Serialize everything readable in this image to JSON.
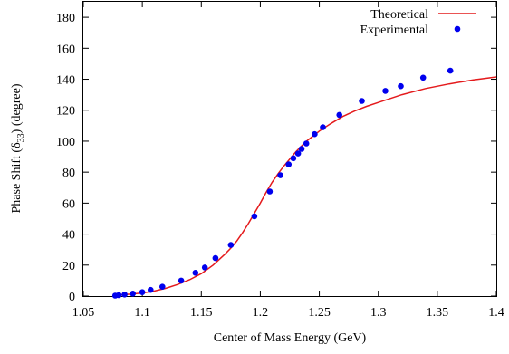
{
  "chart_data": {
    "type": "line",
    "title": "",
    "xlabel": "Center of Mass Energy (GeV)",
    "ylabel_prefix": "Phase Shift (",
    "ylabel_symbol": "δ",
    "ylabel_subscript": "33",
    "ylabel_suffix": ") (degree)",
    "xlim": [
      1.05,
      1.4
    ],
    "ylim": [
      0,
      190
    ],
    "xticks": [
      1.05,
      1.1,
      1.15,
      1.2,
      1.25,
      1.3,
      1.35,
      1.4
    ],
    "xtick_labels": [
      "1.05",
      "1.1",
      "1.15",
      "1.2",
      "1.25",
      "1.3",
      "1.35",
      "1.4"
    ],
    "yticks": [
      0,
      20,
      40,
      60,
      80,
      100,
      120,
      140,
      160,
      180
    ],
    "ytick_labels": [
      "0",
      "20",
      "40",
      "60",
      "80",
      "100",
      "120",
      "140",
      "160",
      "180"
    ],
    "grid": false,
    "legend_position": "top-right",
    "series": [
      {
        "name": "Theoretical",
        "kind": "line",
        "color": "#e41a1c",
        "x": [
          1.075,
          1.09,
          1.1,
          1.11,
          1.12,
          1.13,
          1.14,
          1.15,
          1.16,
          1.17,
          1.175,
          1.18,
          1.185,
          1.19,
          1.195,
          1.2,
          1.205,
          1.21,
          1.215,
          1.22,
          1.225,
          1.23,
          1.235,
          1.24,
          1.25,
          1.26,
          1.27,
          1.28,
          1.29,
          1.3,
          1.32,
          1.34,
          1.36,
          1.38,
          1.4
        ],
        "y": [
          0.5,
          1.2,
          2,
          3.2,
          5,
          7.5,
          10.5,
          14.5,
          20,
          27,
          31,
          35.5,
          41,
          47,
          53.5,
          60,
          67,
          73.5,
          79,
          84,
          88.5,
          93,
          97,
          100.5,
          106.5,
          111.5,
          116,
          119.5,
          122.5,
          125,
          130,
          134,
          137,
          139.5,
          141.5
        ]
      },
      {
        "name": "Experimental",
        "kind": "scatter",
        "color": "#0000ee",
        "x": [
          1.077,
          1.08,
          1.085,
          1.092,
          1.1,
          1.107,
          1.117,
          1.133,
          1.145,
          1.153,
          1.162,
          1.175,
          1.195,
          1.208,
          1.217,
          1.224,
          1.228,
          1.232,
          1.235,
          1.239,
          1.246,
          1.253,
          1.267,
          1.286,
          1.306,
          1.319,
          1.338,
          1.361
        ],
        "y": [
          0.3,
          0.6,
          1,
          1.6,
          2.5,
          4,
          6,
          10,
          15,
          18.5,
          24.5,
          33,
          51.5,
          67.5,
          78,
          85,
          89,
          92,
          95,
          98.5,
          104.5,
          109,
          117,
          126,
          132.5,
          135.5,
          141,
          145.5
        ]
      }
    ]
  }
}
